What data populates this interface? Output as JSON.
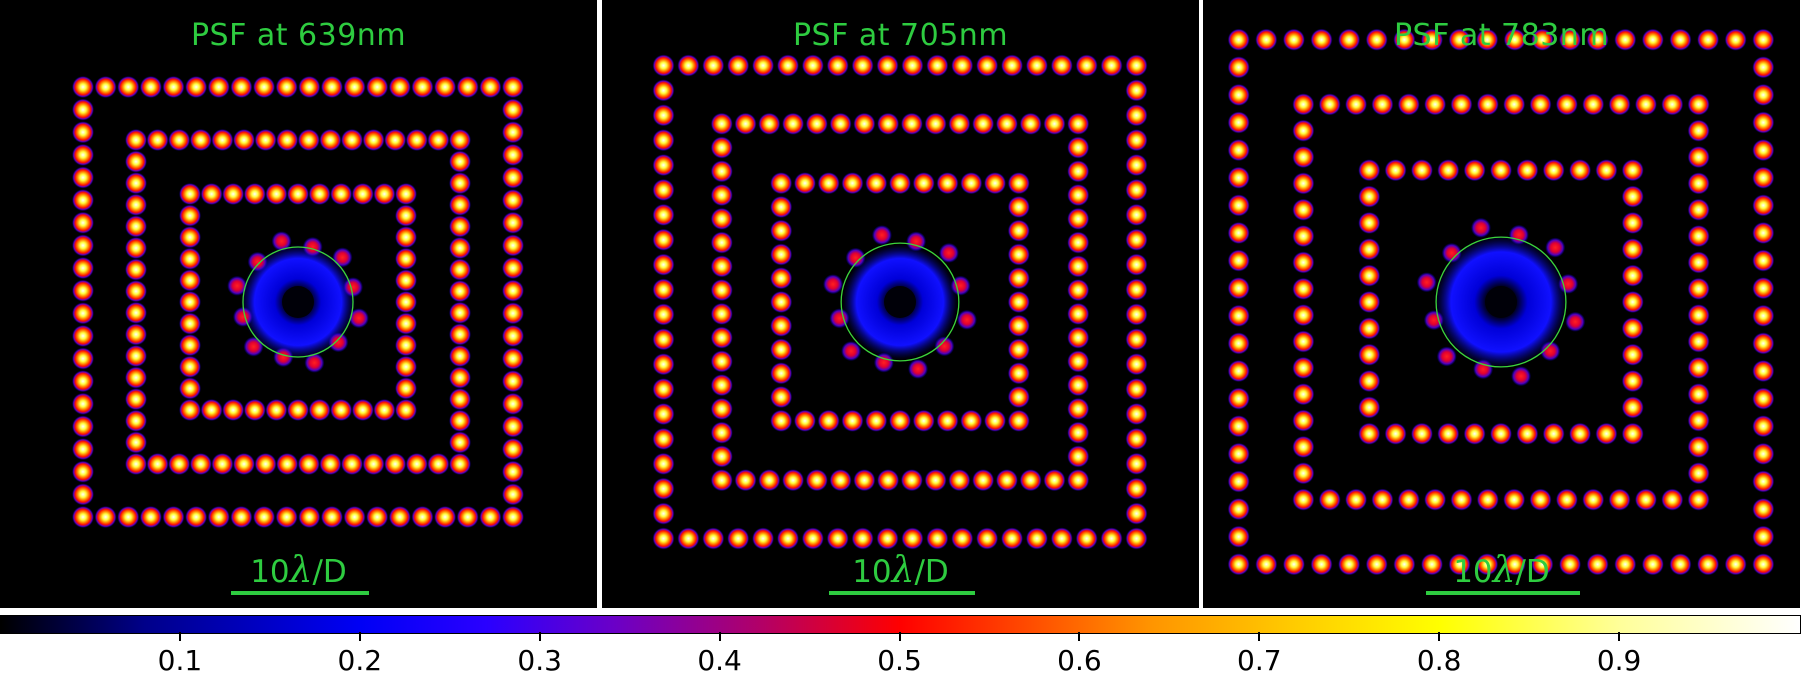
{
  "panels": [
    {
      "title": "PSF at 639nm",
      "spacing": 1.0
    },
    {
      "title": "PSF at 705nm",
      "spacing": 1.1
    },
    {
      "title": "PSF at 783nm",
      "spacing": 1.22
    }
  ],
  "scalebar": {
    "number": "10",
    "lambda": "λ",
    "suffix": "/D"
  },
  "colorbar": {
    "ticks": [
      "0.1",
      "0.2",
      "0.3",
      "0.4",
      "0.5",
      "0.6",
      "0.7",
      "0.8",
      "0.9"
    ]
  },
  "colors": {
    "title": "#2ecc40",
    "circle": "#3cd43c",
    "background": "#000000"
  }
}
